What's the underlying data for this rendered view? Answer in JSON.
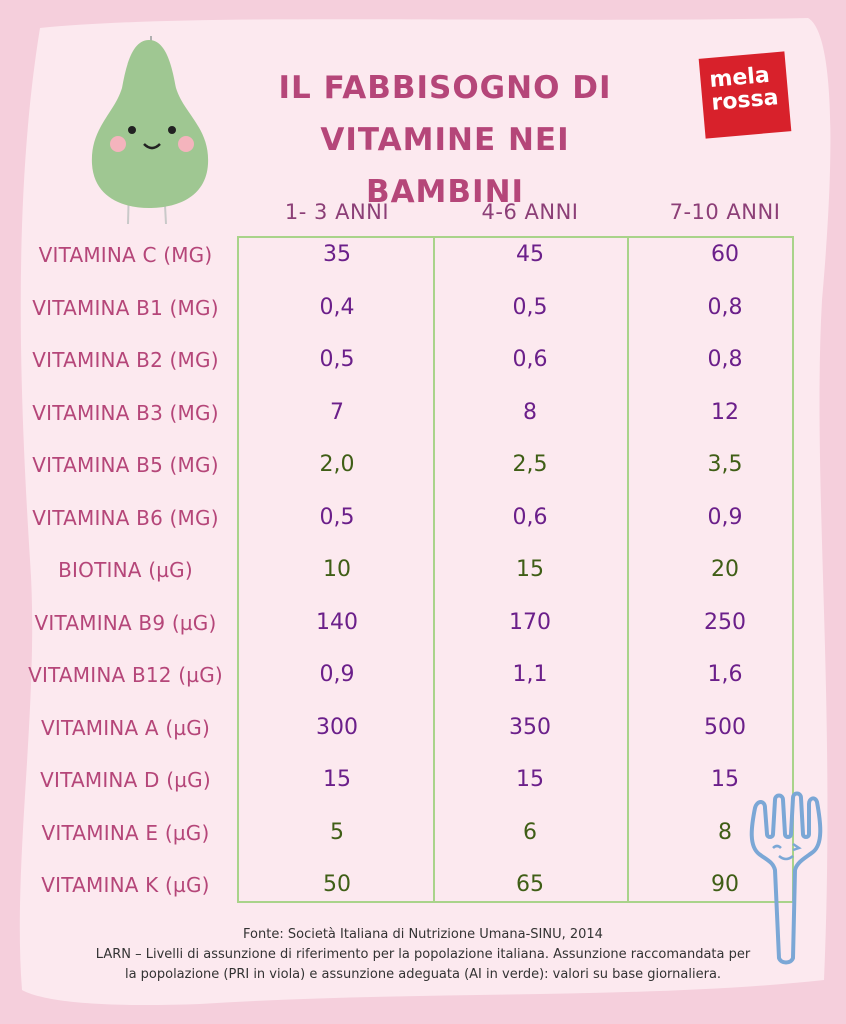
{
  "title_line1": "IL FABBISOGNO DI",
  "title_line2": "VITAMINE NEI BAMBINI",
  "logo": {
    "line1": "mela",
    "line2": "rossa"
  },
  "colors": {
    "background": "#f5cfdc",
    "card": "#fce9ef",
    "title": "#b54679",
    "pri": "#6b1f8a",
    "ai": "#3f5e16",
    "grid": "#a9d38a",
    "logo": "#d8212b"
  },
  "columns": [
    "1- 3 ANNI",
    "4-6 ANNI",
    "7-10 ANNI"
  ],
  "rows": [
    {
      "label": "VITAMINA C (MG)",
      "type": "pri",
      "values": [
        "35",
        "45",
        "60"
      ]
    },
    {
      "label": "VITAMINA B1 (MG)",
      "type": "pri",
      "values": [
        "0,4",
        "0,5",
        "0,8"
      ]
    },
    {
      "label": "VITAMINA B2 (MG)",
      "type": "pri",
      "values": [
        "0,5",
        "0,6",
        "0,8"
      ]
    },
    {
      "label": "VITAMINA B3 (MG)",
      "type": "pri",
      "values": [
        "7",
        "8",
        "12"
      ]
    },
    {
      "label": "VITAMINA B5 (MG)",
      "type": "ai",
      "values": [
        "2,0",
        "2,5",
        "3,5"
      ]
    },
    {
      "label": "VITAMINA B6 (MG)",
      "type": "pri",
      "values": [
        "0,5",
        "0,6",
        "0,9"
      ]
    },
    {
      "label": "BIOTINA (µG)",
      "type": "ai",
      "values": [
        "10",
        "15",
        "20"
      ]
    },
    {
      "label": "VITAMINA B9 (µG)",
      "type": "pri",
      "values": [
        "140",
        "170",
        "250"
      ]
    },
    {
      "label": "VITAMINA B12 (µG)",
      "type": "pri",
      "values": [
        "0,9",
        "1,1",
        "1,6"
      ]
    },
    {
      "label": "VITAMINA A (µG)",
      "type": "pri",
      "values": [
        "300",
        "350",
        "500"
      ]
    },
    {
      "label": "VITAMINA D (µG)",
      "type": "pri",
      "values": [
        "15",
        "15",
        "15"
      ]
    },
    {
      "label": "VITAMINA E (µG)",
      "type": "ai",
      "values": [
        "5",
        "6",
        "8"
      ]
    },
    {
      "label": "VITAMINA K (µG)",
      "type": "ai",
      "values": [
        "50",
        "65",
        "90"
      ]
    }
  ],
  "footer": {
    "line1": "Fonte: Società Italiana di Nutrizione Umana-SINU, 2014",
    "line2": "LARN – Livelli di assunzione di riferimento per la popolazione italiana. Assunzione raccomandata per",
    "line3": "la popolazione (PRI in viola) e assunzione adeguata (AI in verde): valori su base giornaliera."
  }
}
